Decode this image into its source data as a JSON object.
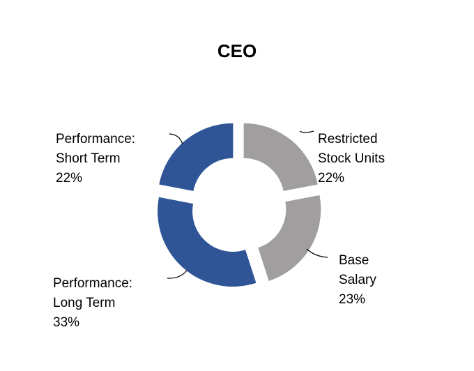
{
  "chart_data": {
    "type": "pie",
    "donut": true,
    "title": "CEO",
    "slices": [
      {
        "label_lines": [
          "Restricted",
          "Stock Units"
        ],
        "percent_label": "22%",
        "value": 22,
        "color": "#a19e9f"
      },
      {
        "label_lines": [
          "Base",
          "Salary"
        ],
        "percent_label": "23%",
        "value": 23,
        "color": "#a19e9f"
      },
      {
        "label_lines": [
          "Performance:",
          "Long Term"
        ],
        "percent_label": "33%",
        "value": 33,
        "color": "#2f5597"
      },
      {
        "label_lines": [
          "Performance:",
          "Short Term"
        ],
        "percent_label": "22%",
        "value": 22,
        "color": "#2f5597"
      }
    ],
    "legend": "none"
  }
}
